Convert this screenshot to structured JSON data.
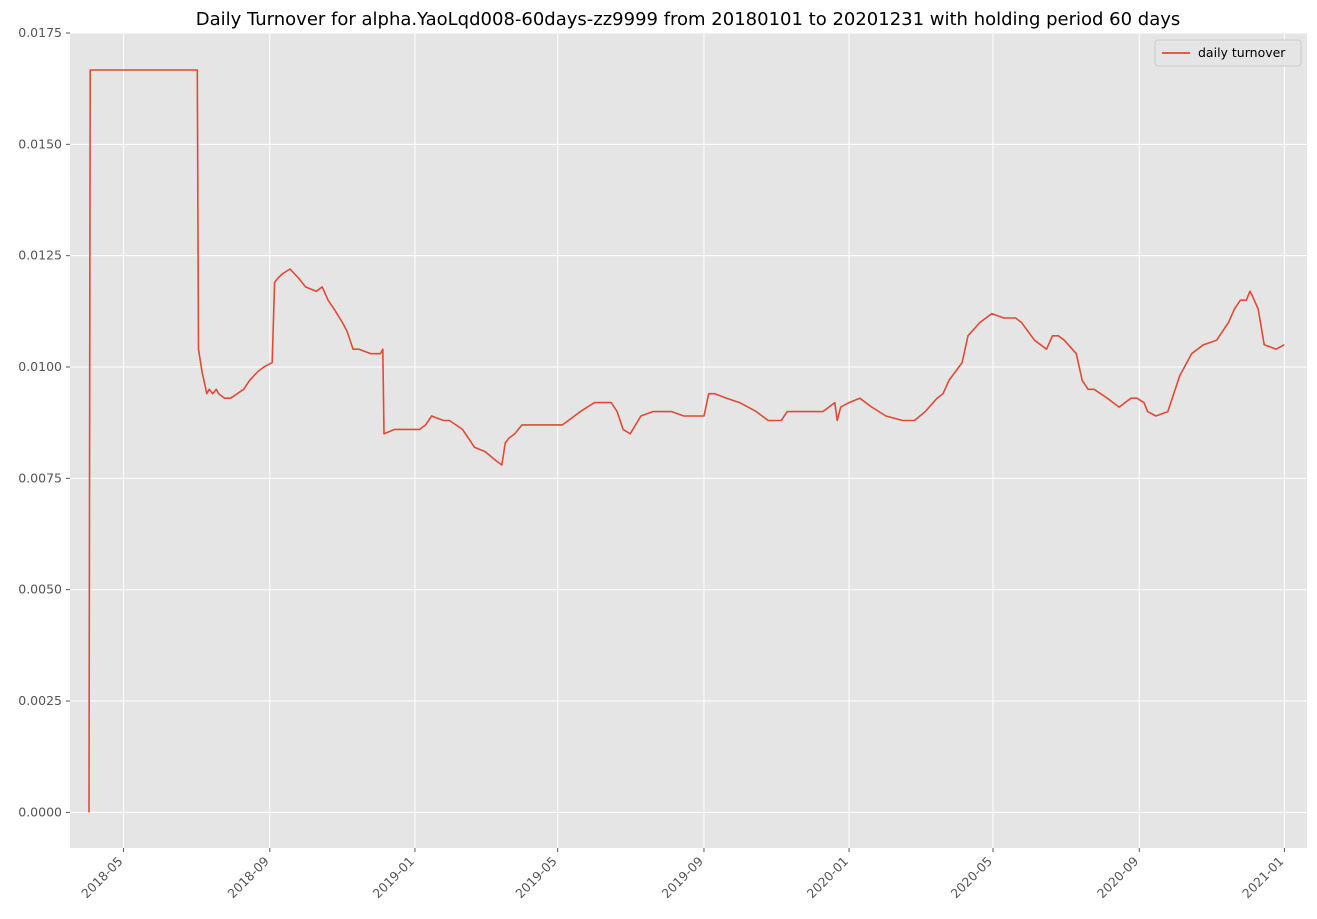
{
  "chart_data": {
    "type": "line",
    "title": "Daily Turnover for alpha.YaoLqd008-60days-zz9999 from 20180101 to 20201231 with holding period 60 days",
    "xlabel": "",
    "ylabel": "",
    "ylim": [
      -0.0008,
      0.0175
    ],
    "yticks": [
      0.0,
      0.0025,
      0.005,
      0.0075,
      0.01,
      0.0125,
      0.015,
      0.0175
    ],
    "ytick_labels": [
      "0.0000",
      "0.0025",
      "0.0050",
      "0.0075",
      "0.0100",
      "0.0125",
      "0.0150",
      "0.0175"
    ],
    "xlim": [
      "2018-03-17",
      "2021-01-20"
    ],
    "xticks": [
      "2018-05-01",
      "2018-09-01",
      "2019-01-01",
      "2019-05-01",
      "2019-09-01",
      "2020-01-01",
      "2020-05-01",
      "2020-09-01",
      "2021-01-01"
    ],
    "xtick_labels": [
      "2018-05",
      "2018-09",
      "2019-01",
      "2019-05",
      "2019-09",
      "2020-01",
      "2020-05",
      "2020-09",
      "2021-01"
    ],
    "grid": true,
    "legend_position": "top-right",
    "colors": {
      "series": "#e24a33",
      "plot_bg": "#e5e5e5",
      "grid": "#ffffff"
    },
    "series": [
      {
        "name": "daily turnover",
        "x": [
          "2018-04-02",
          "2018-04-03",
          "2018-07-02",
          "2018-07-03",
          "2018-07-06",
          "2018-07-10",
          "2018-07-12",
          "2018-07-15",
          "2018-07-18",
          "2018-07-20",
          "2018-07-25",
          "2018-07-30",
          "2018-08-10",
          "2018-08-15",
          "2018-08-22",
          "2018-08-27",
          "2018-09-03",
          "2018-09-05",
          "2018-09-08",
          "2018-09-12",
          "2018-09-18",
          "2018-09-25",
          "2018-10-01",
          "2018-10-10",
          "2018-10-15",
          "2018-10-20",
          "2018-10-25",
          "2018-11-01",
          "2018-11-05",
          "2018-11-10",
          "2018-11-15",
          "2018-11-25",
          "2018-12-03",
          "2018-12-05",
          "2018-12-06",
          "2018-12-15",
          "2018-12-25",
          "2019-01-05",
          "2019-01-10",
          "2019-01-15",
          "2019-01-25",
          "2019-01-30",
          "2019-02-10",
          "2019-02-15",
          "2019-02-20",
          "2019-03-01",
          "2019-03-10",
          "2019-03-15",
          "2019-03-18",
          "2019-03-21",
          "2019-03-26",
          "2019-04-01",
          "2019-04-10",
          "2019-04-25",
          "2019-05-05",
          "2019-05-10",
          "2019-05-20",
          "2019-06-01",
          "2019-06-10",
          "2019-06-15",
          "2019-06-20",
          "2019-06-25",
          "2019-07-01",
          "2019-07-10",
          "2019-07-20",
          "2019-07-28",
          "2019-08-05",
          "2019-08-15",
          "2019-08-25",
          "2019-09-01",
          "2019-09-05",
          "2019-09-10",
          "2019-09-20",
          "2019-10-01",
          "2019-10-15",
          "2019-10-25",
          "2019-11-05",
          "2019-11-10",
          "2019-11-20",
          "2019-12-01",
          "2019-12-10",
          "2019-12-20",
          "2019-12-22",
          "2019-12-25",
          "2020-01-01",
          "2020-01-10",
          "2020-01-20",
          "2020-02-01",
          "2020-02-15",
          "2020-02-25",
          "2020-03-05",
          "2020-03-15",
          "2020-03-20",
          "2020-03-25",
          "2020-04-05",
          "2020-04-10",
          "2020-04-20",
          "2020-04-30",
          "2020-05-10",
          "2020-05-20",
          "2020-05-25",
          "2020-06-05",
          "2020-06-15",
          "2020-06-20",
          "2020-06-25",
          "2020-06-30",
          "2020-07-10",
          "2020-07-15",
          "2020-07-20",
          "2020-07-25",
          "2020-08-05",
          "2020-08-15",
          "2020-08-25",
          "2020-08-30",
          "2020-09-05",
          "2020-09-08",
          "2020-09-15",
          "2020-09-25",
          "2020-10-05",
          "2020-10-15",
          "2020-10-25",
          "2020-11-05",
          "2020-11-15",
          "2020-11-20",
          "2020-11-25",
          "2020-11-30",
          "2020-12-03",
          "2020-12-05",
          "2020-12-10",
          "2020-12-15",
          "2020-12-25",
          "2021-01-01"
        ],
        "values": [
          0.0,
          0.01667,
          0.01667,
          0.0104,
          0.0099,
          0.0094,
          0.0095,
          0.0094,
          0.0095,
          0.0094,
          0.0093,
          0.0093,
          0.0095,
          0.0097,
          0.0099,
          0.01,
          0.0101,
          0.0119,
          0.012,
          0.0121,
          0.0122,
          0.012,
          0.0118,
          0.0117,
          0.0118,
          0.0115,
          0.0113,
          0.011,
          0.0108,
          0.0104,
          0.0104,
          0.0103,
          0.0103,
          0.0104,
          0.0085,
          0.0086,
          0.0086,
          0.0086,
          0.0087,
          0.0089,
          0.0088,
          0.0088,
          0.0086,
          0.0084,
          0.0082,
          0.0081,
          0.0079,
          0.0078,
          0.0083,
          0.0084,
          0.0085,
          0.0087,
          0.0087,
          0.0087,
          0.0087,
          0.0088,
          0.009,
          0.0092,
          0.0092,
          0.0092,
          0.009,
          0.0086,
          0.0085,
          0.0089,
          0.009,
          0.009,
          0.009,
          0.0089,
          0.0089,
          0.0089,
          0.0094,
          0.0094,
          0.0093,
          0.0092,
          0.009,
          0.0088,
          0.0088,
          0.009,
          0.009,
          0.009,
          0.009,
          0.0092,
          0.0088,
          0.0091,
          0.0092,
          0.0093,
          0.0091,
          0.0089,
          0.0088,
          0.0088,
          0.009,
          0.0093,
          0.0094,
          0.0097,
          0.0101,
          0.0107,
          0.011,
          0.0112,
          0.0111,
          0.0111,
          0.011,
          0.0106,
          0.0104,
          0.0107,
          0.0107,
          0.0106,
          0.0103,
          0.0097,
          0.0095,
          0.0095,
          0.0093,
          0.0091,
          0.0093,
          0.0093,
          0.0092,
          0.009,
          0.0089,
          0.009,
          0.0098,
          0.0103,
          0.0105,
          0.0106,
          0.011,
          0.0113,
          0.0115,
          0.0115,
          0.0117,
          0.0116,
          0.0113,
          0.0105,
          0.0104,
          0.0105
        ]
      }
    ]
  }
}
